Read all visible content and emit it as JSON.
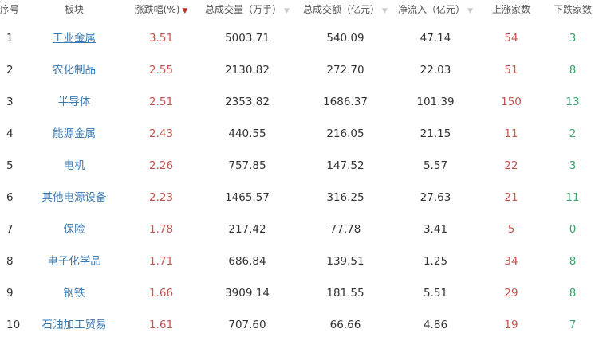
{
  "headers": {
    "index": "序号",
    "sector": "板块",
    "change": "涨跌幅(%)",
    "volume": "总成交量（万手）",
    "amount": "总成交额（亿元）",
    "inflow": "净流入（亿元）",
    "up_count": "上涨家数",
    "down_count": "下跌家数"
  },
  "sort_icons": {
    "active": "▼",
    "inactive": "▼"
  },
  "colors": {
    "up": "#c9544d",
    "down": "#3aa56a",
    "link": "#3a7ab3"
  },
  "rows": [
    {
      "index": "1",
      "sector": "工业金属",
      "change": "3.51",
      "volume": "5003.71",
      "amount": "540.09",
      "inflow": "47.14",
      "up": "54",
      "down": "3"
    },
    {
      "index": "2",
      "sector": "农化制品",
      "change": "2.55",
      "volume": "2130.82",
      "amount": "272.70",
      "inflow": "22.03",
      "up": "51",
      "down": "8"
    },
    {
      "index": "3",
      "sector": "半导体",
      "change": "2.51",
      "volume": "2353.82",
      "amount": "1686.37",
      "inflow": "101.39",
      "up": "150",
      "down": "13"
    },
    {
      "index": "4",
      "sector": "能源金属",
      "change": "2.43",
      "volume": "440.55",
      "amount": "216.05",
      "inflow": "21.15",
      "up": "11",
      "down": "2"
    },
    {
      "index": "5",
      "sector": "电机",
      "change": "2.26",
      "volume": "757.85",
      "amount": "147.52",
      "inflow": "5.57",
      "up": "22",
      "down": "3"
    },
    {
      "index": "6",
      "sector": "其他电源设备",
      "change": "2.23",
      "volume": "1465.57",
      "amount": "316.25",
      "inflow": "27.63",
      "up": "21",
      "down": "11"
    },
    {
      "index": "7",
      "sector": "保险",
      "change": "1.78",
      "volume": "217.42",
      "amount": "77.78",
      "inflow": "3.41",
      "up": "5",
      "down": "0"
    },
    {
      "index": "8",
      "sector": "电子化学品",
      "change": "1.71",
      "volume": "686.84",
      "amount": "139.51",
      "inflow": "1.25",
      "up": "34",
      "down": "8"
    },
    {
      "index": "9",
      "sector": "钢铁",
      "change": "1.66",
      "volume": "3909.14",
      "amount": "181.55",
      "inflow": "5.51",
      "up": "29",
      "down": "8"
    },
    {
      "index": "10",
      "sector": "石油加工贸易",
      "change": "1.61",
      "volume": "707.60",
      "amount": "66.66",
      "inflow": "4.86",
      "up": "19",
      "down": "7"
    }
  ]
}
